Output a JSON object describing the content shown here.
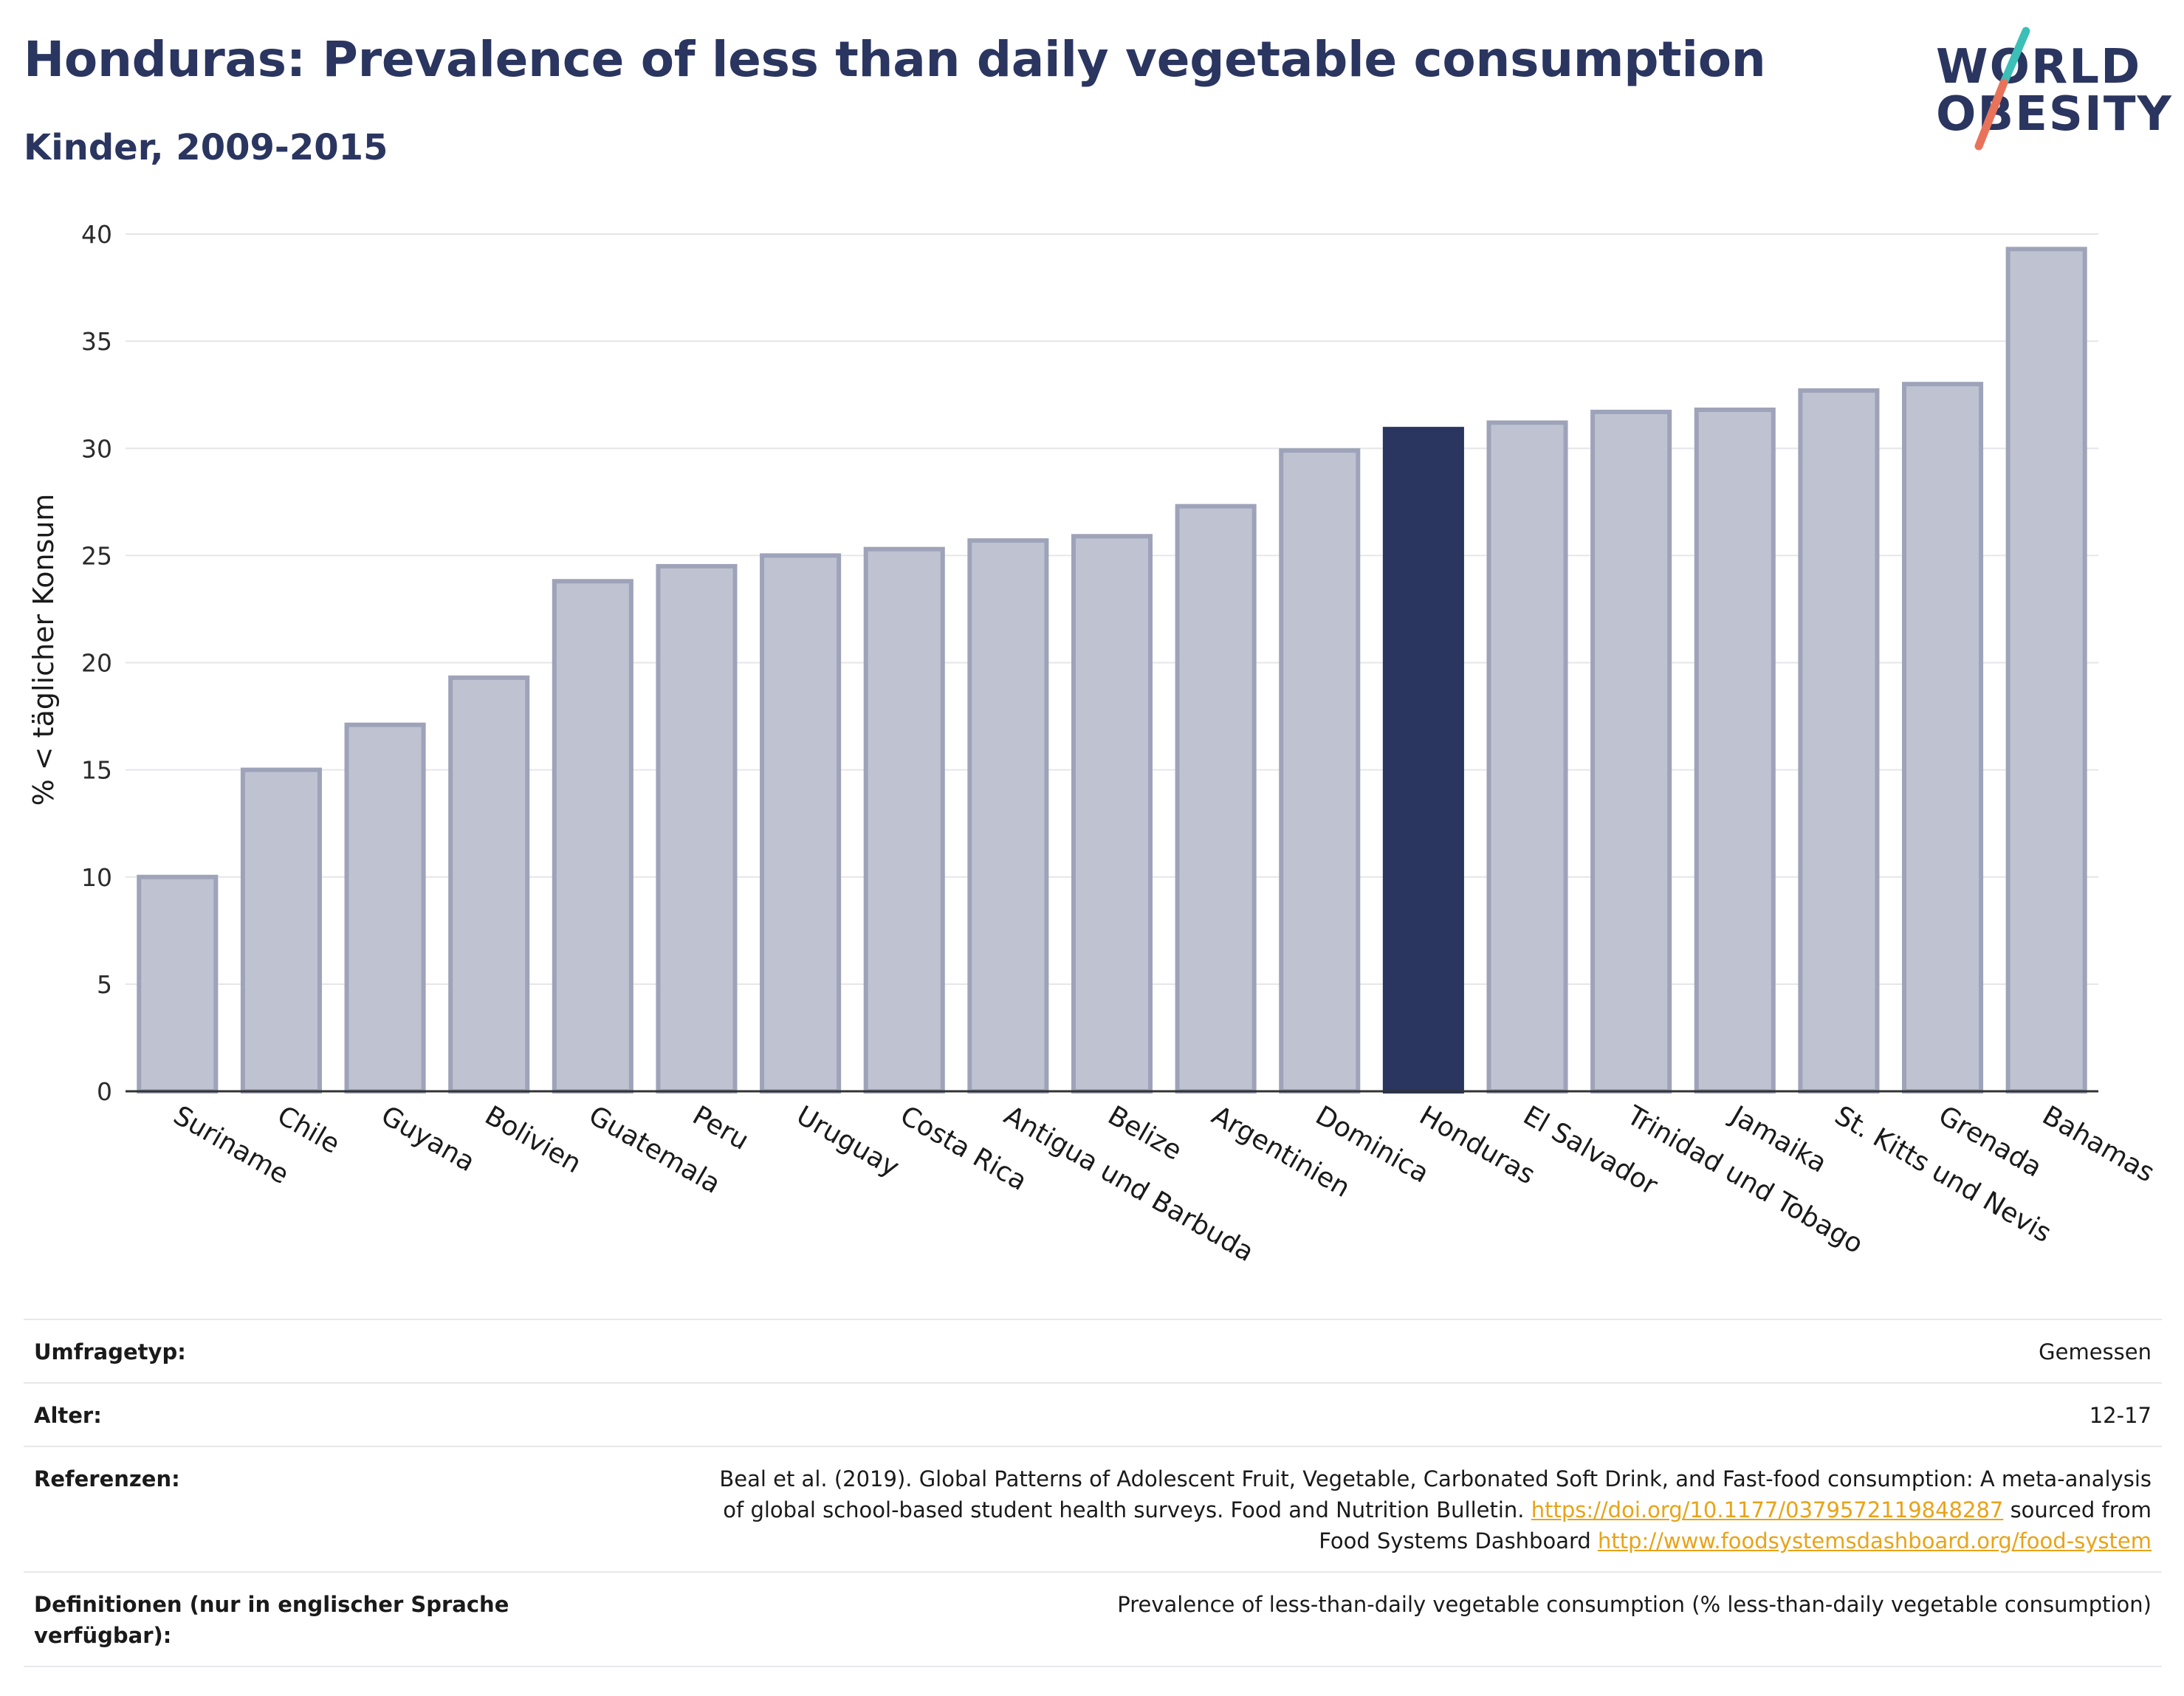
{
  "header": {
    "title": "Honduras: Prevalence of less than daily vegetable consumption",
    "subtitle": "Kinder, 2009-2015"
  },
  "logo": {
    "line1": "WORLD",
    "line2": "OBESITY",
    "accent_teal": "#3bbfb7",
    "accent_red": "#e8735a"
  },
  "colors": {
    "bar": "#2a3560",
    "bar_faded_fill": "#bfc3d1",
    "bar_faded_stroke": "#9ea3b9",
    "highlight": "#2a3560",
    "link": "#e8a317"
  },
  "chart_data": {
    "type": "bar",
    "ylabel": "% < täglicher Konsum",
    "ylim": [
      0,
      40
    ],
    "yticks": [
      0,
      5,
      10,
      15,
      20,
      25,
      30,
      35,
      40
    ],
    "grid": true,
    "highlight": "Honduras",
    "categories": [
      "Suriname",
      "Chile",
      "Guyana",
      "Bolivien",
      "Guatemala",
      "Peru",
      "Uruguay",
      "Costa Rica",
      "Antigua und Barbuda",
      "Belize",
      "Argentinien",
      "Dominica",
      "Honduras",
      "El Salvador",
      "Trinidad und Tobago",
      "Jamaika",
      "St. Kitts und Nevis",
      "Grenada",
      "Bahamas"
    ],
    "values": [
      10.0,
      15.0,
      17.1,
      19.3,
      23.8,
      24.5,
      25.0,
      25.3,
      25.7,
      25.9,
      27.3,
      29.9,
      30.9,
      31.2,
      31.7,
      31.8,
      32.7,
      33.0,
      39.3
    ]
  },
  "info": {
    "survey_label": "Umfragetyp:",
    "survey_value": "Gemessen",
    "age_label": "Alter:",
    "age_value": "12-17",
    "ref_label": "Referenzen:",
    "ref_line1": "Beal et al. (2019). Global Patterns of Adolescent Fruit, Vegetable, Carbonated Soft Drink, and Fast-food consumption: A meta-analysis",
    "ref_line2_a": "of global school-based student health surveys. Food and Nutrition Bulletin.",
    "ref_link1": "https://doi.org/10.1177/0379572119848287",
    "ref_line2_b": "sourced from",
    "ref_line3_a": "Food Systems Dashboard",
    "ref_link2": "http://www.foodsystemsdashboard.org/food-system",
    "def_label": "Definitionen (nur in englischer Sprache verfügbar):",
    "def_value": "Prevalence of less-than-daily vegetable consumption (% less-than-daily vegetable consumption)"
  }
}
